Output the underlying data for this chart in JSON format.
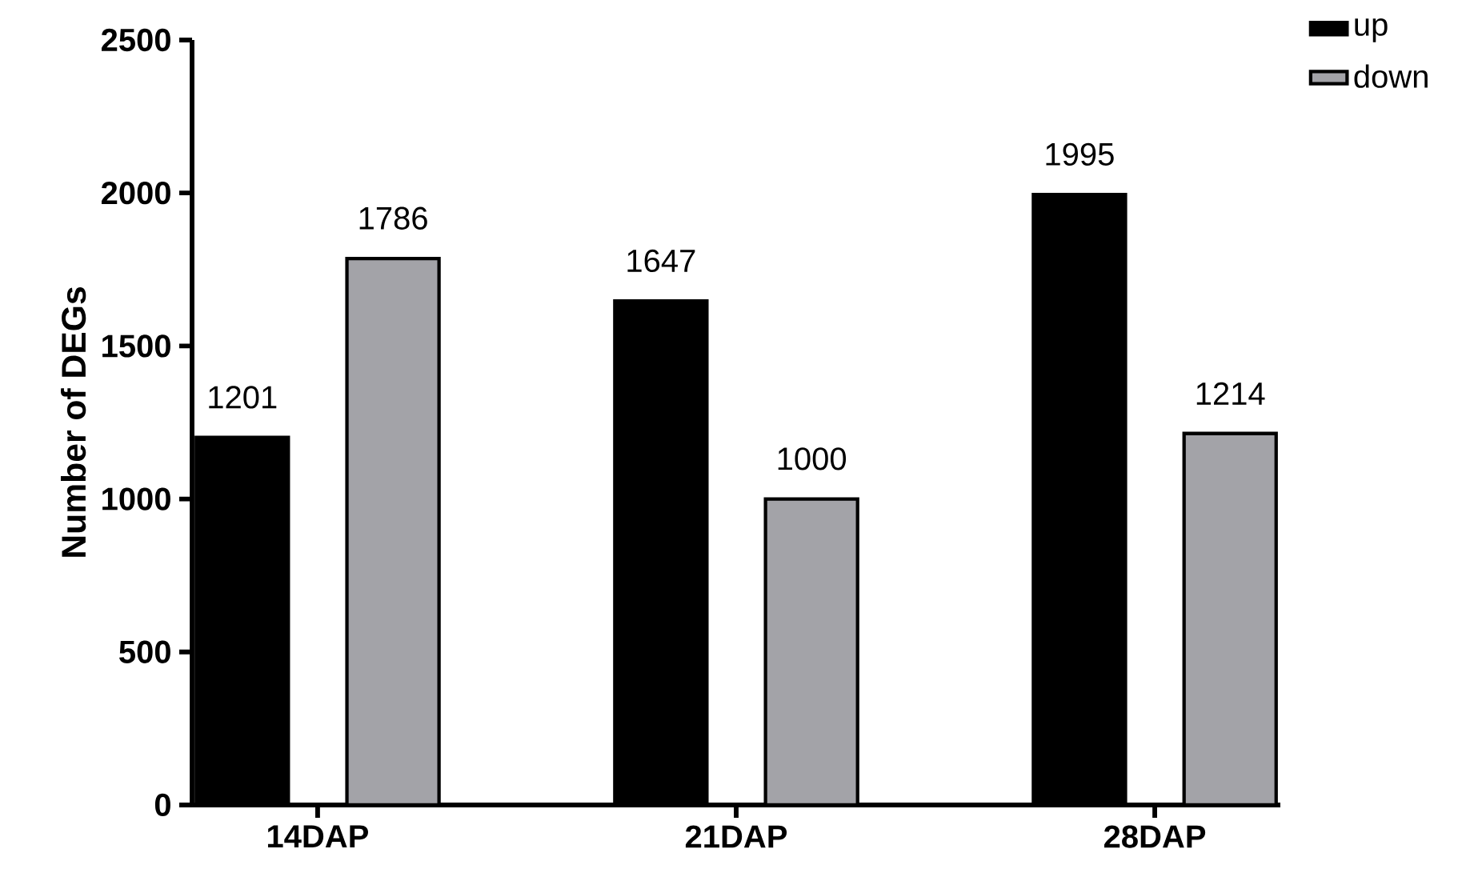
{
  "chart_data": {
    "type": "bar",
    "ylabel": "Number of DEGs",
    "categories": [
      "14DAP",
      "21DAP",
      "28DAP"
    ],
    "series": [
      {
        "name": "up",
        "color": "#000000",
        "values": [
          1201,
          1647,
          1995
        ]
      },
      {
        "name": "down",
        "color": "#a3a3a8",
        "values": [
          1786,
          1000,
          1214
        ]
      }
    ],
    "ylim": [
      0,
      2500
    ],
    "yticks": [
      0,
      500,
      1000,
      1500,
      2000,
      2500
    ],
    "data_labels": true,
    "legend": "top right",
    "grid": false
  }
}
